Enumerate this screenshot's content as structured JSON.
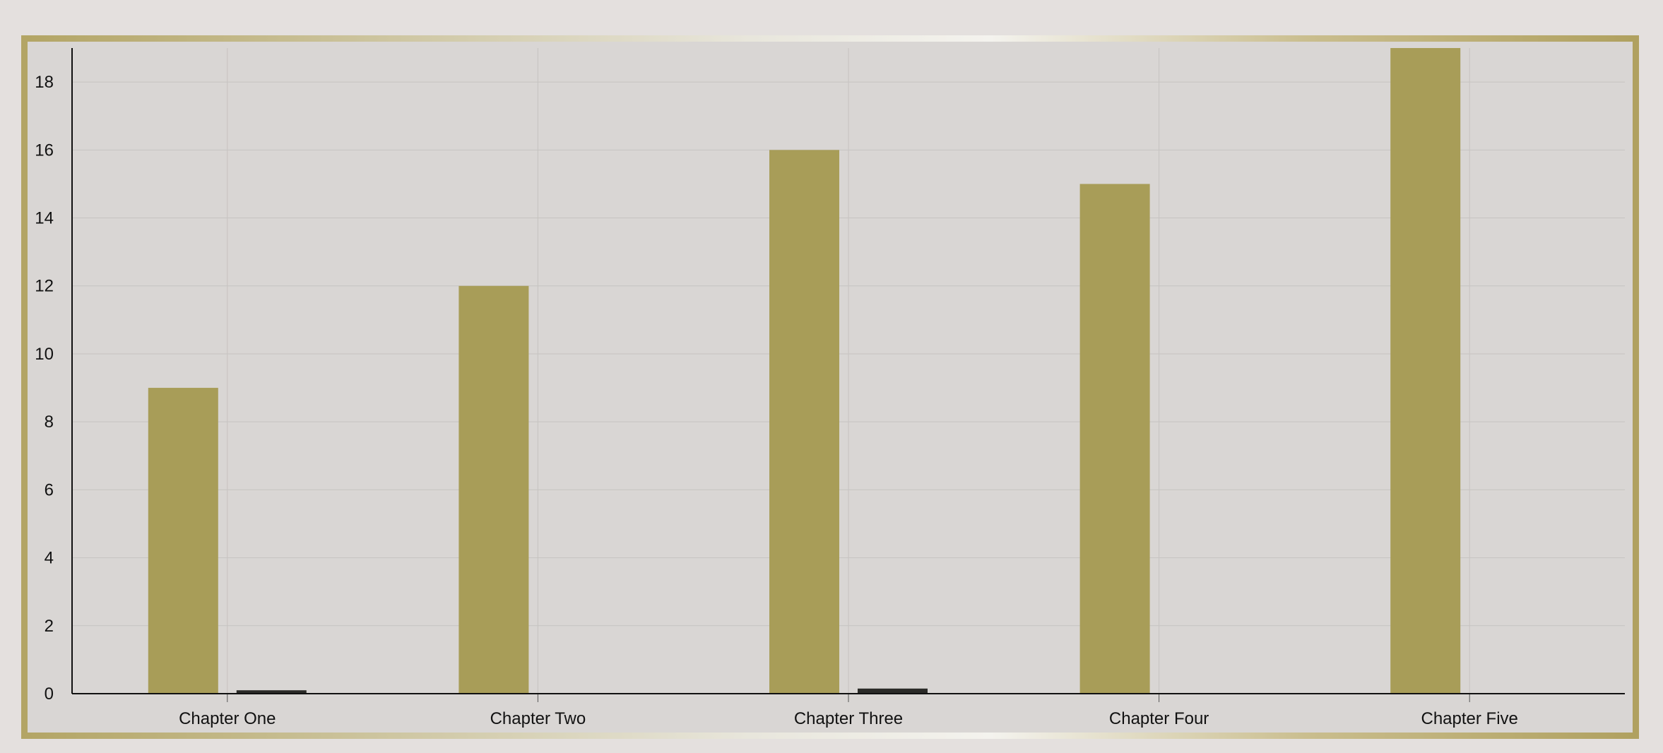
{
  "chart_data": {
    "type": "bar",
    "title": "",
    "xlabel": "",
    "ylabel": "",
    "categories": [
      "Chapter One",
      "Chapter Two",
      "Chapter Three",
      "Chapter Four",
      "Chapter Five"
    ],
    "series": [
      {
        "color": "#a89d58",
        "values": [
          9,
          12,
          16,
          15,
          19
        ]
      },
      {
        "color": "#2b2b28",
        "values": [
          0.1,
          0,
          0.15,
          0,
          0
        ]
      }
    ],
    "ylim": [
      0,
      19
    ],
    "yticks": [
      0,
      2,
      4,
      6,
      8,
      10,
      12,
      14,
      16,
      18
    ],
    "grid": true,
    "legend": "none"
  },
  "colors": {
    "plot_background": "#d9d6d4",
    "frame_gold": "#b7a96a",
    "gridline": "#c6c3c1"
  }
}
